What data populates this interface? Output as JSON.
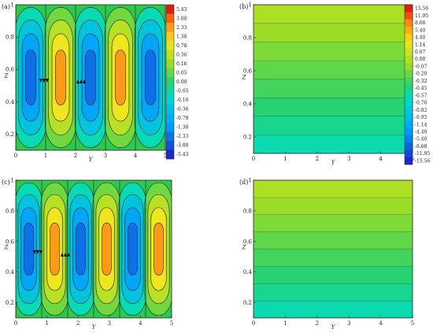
{
  "panels": [
    {
      "label": "(a)",
      "xlabel": "Y",
      "ylabel": "Z",
      "xticks": [
        "0",
        "1",
        "2",
        "3",
        "4",
        "5"
      ],
      "yticks": [
        "0.2",
        "0.4",
        "0.6",
        "0.8",
        "1"
      ],
      "type": "cells",
      "colorbar": [
        "5.43",
        "3.88",
        "2.33",
        "1.38",
        "0.78",
        "0.36",
        "0.16",
        "0.05",
        "0.00",
        "-0.05",
        "-0.16",
        "-0.36",
        "-0.78",
        "-1.38",
        "-2.33",
        "-3.88",
        "-5.43"
      ]
    },
    {
      "label": "(b)",
      "xlabel": "Y",
      "ylabel": "Z",
      "xticks": [
        "0",
        "1",
        "2",
        "3",
        "4",
        "5"
      ],
      "yticks": [
        "0.2",
        "0.4",
        "0.6",
        "0.8",
        "1"
      ],
      "type": "strata",
      "colorbar": [
        "15.56",
        "11.95",
        "8.68",
        "5.40",
        "4.40",
        "1.14",
        "0.07",
        "0.00",
        "-0.07",
        "-0.20",
        "-0.32",
        "-0.45",
        "-0.57",
        "-0.70",
        "-0.82",
        "-0.95",
        "-1.14",
        "-4.40",
        "-5.40",
        "-8.68",
        "-11.95",
        "-15.56"
      ]
    },
    {
      "label": "(c)",
      "xlabel": "Y",
      "ylabel": "Z",
      "xticks": [
        "0",
        "1",
        "2",
        "3",
        "4",
        "5"
      ],
      "yticks": [
        "0.2",
        "0.4",
        "0.6",
        "0.8",
        "1"
      ],
      "type": "cells"
    },
    {
      "label": "(d)",
      "xlabel": "Y",
      "ylabel": "Z",
      "xticks": [
        "0",
        "1",
        "2",
        "3",
        "4",
        "5"
      ],
      "yticks": [
        "0.2",
        "0.4",
        "0.6",
        "0.8",
        "1"
      ],
      "type": "strata"
    }
  ]
}
